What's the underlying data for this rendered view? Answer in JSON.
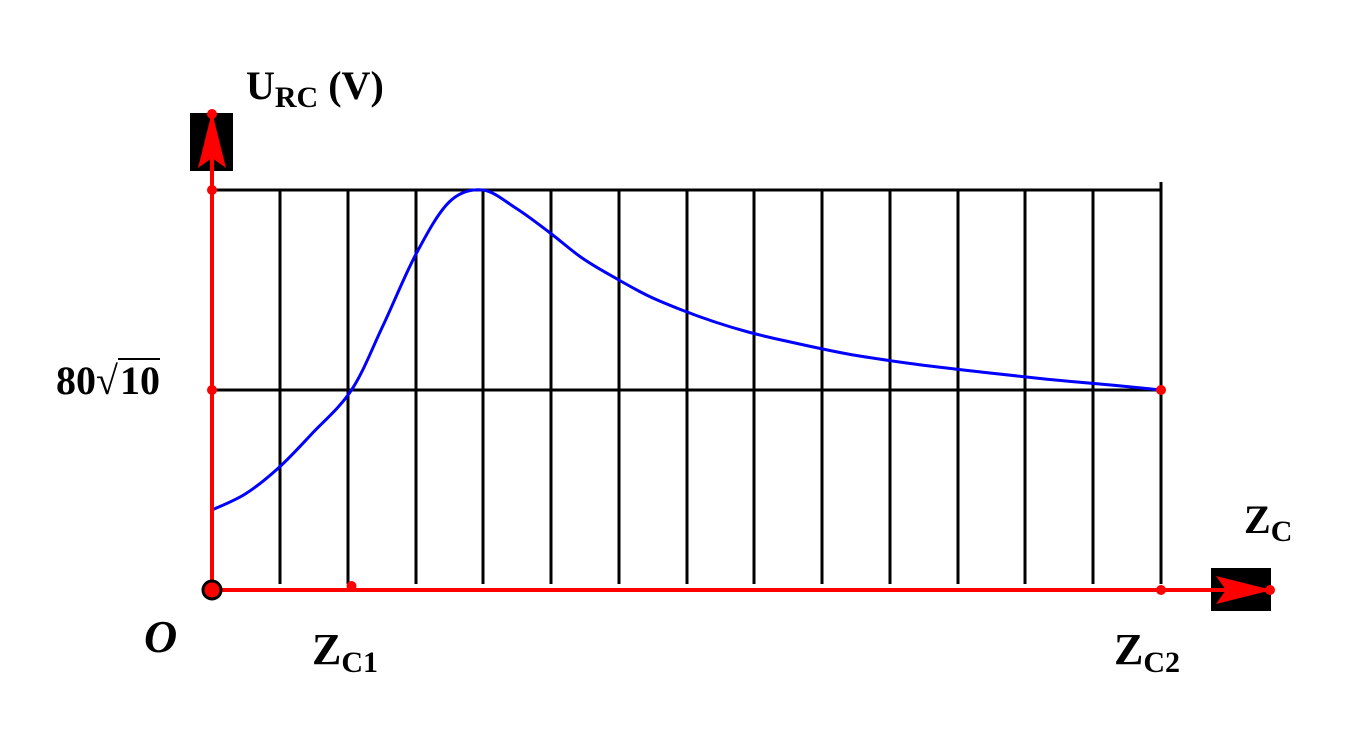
{
  "chart_data": {
    "type": "line",
    "y_axis": {
      "main": "U",
      "subscript": "RC",
      "unit": "(V)"
    },
    "x_axis": {
      "main": "Z",
      "subscript": "C"
    },
    "origin_label": "O",
    "y_tick": {
      "coefficient": "80",
      "radicand": "10"
    },
    "x_ticks": [
      {
        "main": "Z",
        "subscript": "C1"
      },
      {
        "main": "Z",
        "subscript": "C2"
      }
    ],
    "grid": true,
    "vertical_grid_lines": 15,
    "xlim": [
      0,
      1
    ],
    "ylim": [
      0,
      1
    ],
    "series": [
      {
        "x": [
          0,
          0.035,
          0.07,
          0.105,
          0.147,
          0.18,
          0.215,
          0.25,
          0.285,
          0.32,
          0.355,
          0.39,
          0.425,
          0.46,
          0.495,
          0.53,
          0.565,
          0.6,
          0.67,
          0.74,
          0.81,
          0.88,
          0.95,
          1.0
        ],
        "y": [
          0.2,
          0.24,
          0.305,
          0.39,
          0.5,
          0.66,
          0.84,
          0.97,
          1.0,
          0.955,
          0.895,
          0.83,
          0.78,
          0.735,
          0.7,
          0.67,
          0.645,
          0.625,
          0.59,
          0.565,
          0.545,
          0.527,
          0.512,
          0.5
        ]
      }
    ],
    "colors": {
      "axes": "#ff0000",
      "grid": "#000000",
      "curve": "#0000ff",
      "arrow_box": "#000000"
    }
  }
}
